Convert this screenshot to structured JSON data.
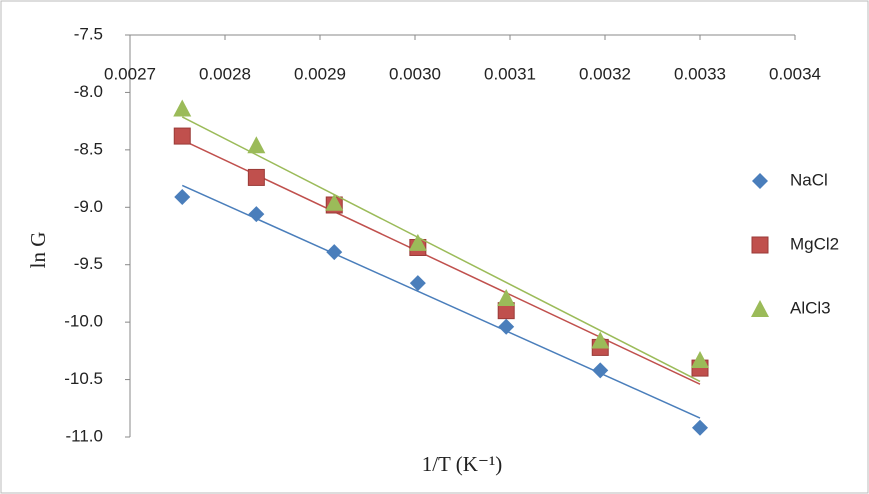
{
  "chart_data": {
    "type": "scatter",
    "x_label": "1/T (K⁻¹)",
    "y_label": "ln G",
    "xlim": [
      0.0027,
      0.0034
    ],
    "xticks": [
      0.0027,
      0.0028,
      0.0029,
      {
        "value": 0.003,
        "label": "0.0030"
      },
      0.0031,
      0.0032,
      0.0033,
      0.0034
    ],
    "ylim": [
      -11,
      -7.5
    ],
    "yticks": [
      -7.5,
      {
        "value": -8,
        "label": "-8.0"
      },
      -8.5,
      {
        "value": -9,
        "label": "-9.0"
      },
      -9.5,
      {
        "value": -10,
        "label": "-10.0"
      },
      -10.5,
      {
        "value": -11,
        "label": "-11.0"
      }
    ],
    "trendline": true,
    "legend": "right",
    "series": [
      {
        "name": "NaCl",
        "color": "#4a7ebb",
        "marker": "diamond",
        "x": [
          0.002755,
          0.002833,
          0.002915,
          0.003003,
          0.003096,
          0.003195,
          0.0033
        ],
        "values": [
          -8.91,
          -9.06,
          -9.39,
          -9.66,
          -10.04,
          -10.42,
          -10.92
        ]
      },
      {
        "name": "MgCl2",
        "color": "#c0504d",
        "marker": "square",
        "x": [
          0.002755,
          0.002833,
          0.002915,
          0.003003,
          0.003096,
          0.003195,
          0.0033
        ],
        "values": [
          -8.38,
          -8.74,
          -8.98,
          -9.35,
          -9.9,
          -10.22,
          -10.4
        ]
      },
      {
        "name": "AlCl3",
        "color": "#9bbb59",
        "marker": "triangle",
        "x": [
          0.002755,
          0.002833,
          0.002915,
          0.003003,
          0.003096,
          0.003195,
          0.0033
        ],
        "values": [
          -8.14,
          -8.46,
          -8.96,
          -9.31,
          -9.79,
          -10.16,
          -10.33
        ]
      }
    ]
  }
}
